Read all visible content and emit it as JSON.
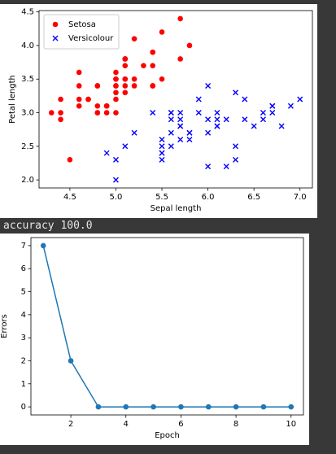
{
  "output_text": "accuracy 100.0",
  "chart_data": [
    {
      "type": "scatter",
      "xlabel": "Sepal length",
      "ylabel": "Petal length",
      "xlim": [
        4.165,
        7.135
      ],
      "ylim": [
        1.88,
        4.52
      ],
      "xticks": [
        4.5,
        {
          "value": 5.0,
          "label": "5.0"
        },
        5.5,
        {
          "value": 6.0,
          "label": "6.0"
        },
        6.5,
        {
          "value": 7.0,
          "label": "7.0"
        }
      ],
      "yticks": [
        {
          "value": 2.0,
          "label": "2.0"
        },
        2.5,
        {
          "value": 3.0,
          "label": "3.0"
        },
        3.5,
        {
          "value": 4.0,
          "label": "4.0"
        },
        4.5
      ],
      "legend": "upper left",
      "series": [
        {
          "name": "Setosa",
          "color": "#ff0000",
          "marker": "o",
          "x": [
            5.1,
            4.9,
            4.7,
            4.6,
            5.0,
            5.4,
            4.6,
            5.0,
            4.4,
            4.9,
            5.4,
            4.8,
            4.8,
            4.3,
            5.8,
            5.7,
            5.4,
            5.1,
            5.7,
            5.1,
            5.4,
            5.1,
            4.6,
            5.1,
            4.8,
            5.0,
            5.0,
            5.2,
            5.2,
            4.7,
            4.8,
            5.4,
            5.2,
            5.5,
            4.9,
            5.0,
            5.5,
            4.9,
            4.4,
            5.1,
            5.0,
            4.5,
            4.4,
            5.0,
            5.1,
            4.8,
            5.1,
            4.6,
            5.3,
            5.0
          ],
          "values": [
            3.5,
            3.0,
            3.2,
            3.1,
            3.6,
            3.9,
            3.4,
            3.4,
            2.9,
            3.1,
            3.7,
            3.4,
            3.0,
            3.0,
            4.0,
            4.4,
            3.9,
            3.5,
            3.8,
            3.8,
            3.4,
            3.7,
            3.6,
            3.3,
            3.4,
            3.0,
            3.4,
            3.5,
            3.4,
            3.2,
            3.1,
            3.4,
            4.1,
            4.2,
            3.1,
            3.2,
            3.5,
            3.1,
            3.0,
            3.4,
            3.5,
            2.3,
            3.2,
            3.5,
            3.8,
            3.0,
            3.8,
            3.2,
            3.7,
            3.3
          ]
        },
        {
          "name": "Versicolour",
          "color": "#0000ff",
          "marker": "x",
          "x": [
            7.0,
            6.4,
            6.9,
            5.5,
            6.5,
            5.7,
            6.3,
            4.9,
            6.6,
            5.2,
            5.0,
            5.9,
            6.0,
            6.1,
            5.6,
            6.7,
            5.6,
            5.8,
            6.2,
            5.6,
            5.9,
            6.1,
            6.3,
            6.1,
            6.4,
            6.6,
            6.8,
            6.7,
            6.0,
            5.7,
            5.5,
            5.5,
            5.8,
            6.0,
            5.4,
            6.0,
            6.7,
            6.3,
            5.6,
            5.5,
            5.5,
            6.1,
            5.8,
            5.0,
            5.6,
            5.7,
            5.7,
            6.2,
            5.1,
            5.7
          ],
          "values": [
            3.2,
            3.2,
            3.1,
            2.3,
            2.8,
            2.8,
            3.3,
            2.4,
            2.9,
            2.7,
            2.0,
            3.0,
            2.2,
            2.9,
            2.9,
            3.1,
            3.0,
            2.7,
            2.2,
            2.5,
            3.2,
            2.8,
            2.5,
            2.8,
            2.9,
            3.0,
            2.8,
            3.0,
            2.9,
            2.6,
            2.4,
            2.4,
            2.7,
            2.7,
            3.0,
            3.4,
            3.1,
            2.3,
            3.0,
            2.5,
            2.6,
            3.0,
            2.6,
            2.3,
            2.7,
            3.0,
            2.9,
            2.9,
            2.5,
            2.8
          ]
        }
      ]
    },
    {
      "type": "line",
      "xlabel": "Epoch",
      "ylabel": "Errors",
      "xlim": [
        0.55,
        10.45
      ],
      "ylim": [
        -0.35,
        7.35
      ],
      "xticks": [
        2,
        4,
        6,
        8,
        10
      ],
      "yticks": [
        0,
        1,
        2,
        3,
        4,
        5,
        6,
        7
      ],
      "series": [
        {
          "color": "#1f77b4",
          "marker": "o",
          "x": [
            1,
            2,
            3,
            4,
            5,
            6,
            7,
            8,
            9,
            10
          ],
          "values": [
            7,
            2,
            0,
            0,
            0,
            0,
            0,
            0,
            0,
            0
          ]
        }
      ]
    }
  ]
}
